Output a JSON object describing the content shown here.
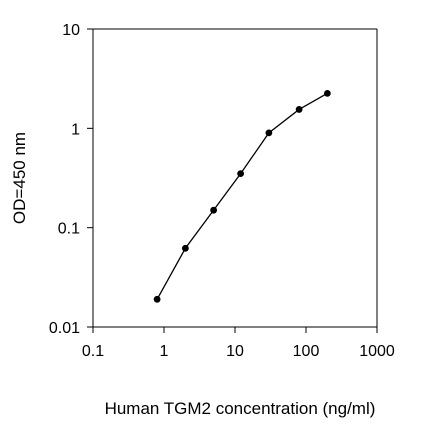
{
  "chart_data": {
    "type": "line",
    "x_scale": "log",
    "y_scale": "log",
    "xlabel": "Human TGM2 concentration (ng/ml)",
    "ylabel": "OD=450 nm",
    "xlim": [
      0.1,
      1000
    ],
    "ylim": [
      0.01,
      10
    ],
    "x_ticks": [
      0.1,
      1,
      10,
      100,
      1000
    ],
    "x_tick_labels": [
      "0.1",
      "1",
      "10",
      "100",
      "1000"
    ],
    "y_ticks": [
      0.01,
      0.1,
      1,
      10
    ],
    "y_tick_labels": [
      "0.01",
      "0.1",
      "1",
      "10"
    ],
    "grid": false,
    "markers": "filled-circle",
    "series": [
      {
        "x": [
          0.8,
          2,
          5,
          12,
          30,
          80,
          200
        ],
        "y": [
          0.019,
          0.062,
          0.15,
          0.35,
          0.9,
          1.55,
          2.25
        ]
      }
    ],
    "colors": {
      "line": "#000000",
      "marker": "#000000",
      "axis": "#000000"
    }
  }
}
